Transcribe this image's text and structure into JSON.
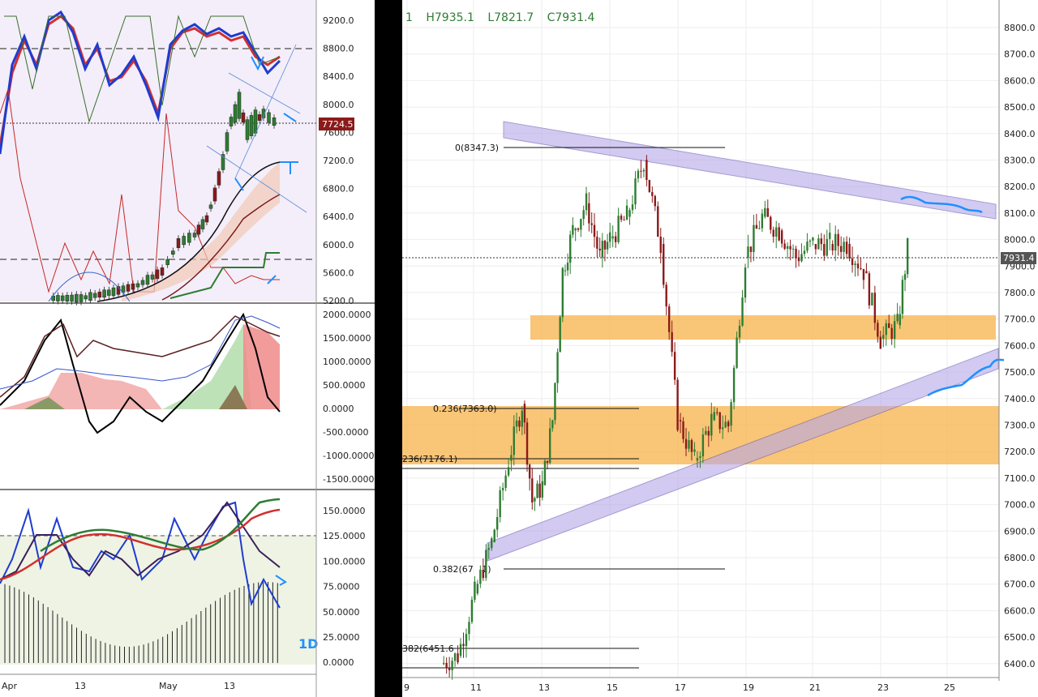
{
  "left": {
    "price_panel": {
      "axis_labels": [
        "9200.0",
        "8800.0",
        "8400.0",
        "8000.0",
        "7600.0",
        "7200.0",
        "6800.0",
        "6400.0",
        "6000.0",
        "5600.0",
        "5200.0"
      ],
      "last_price": "7724.5"
    },
    "macd_panel": {
      "axis_labels": [
        "2000.0000",
        "1500.0000",
        "1000.0000",
        "500.0000",
        "0.0000",
        "-500.0000",
        "-1000.0000",
        "-1500.0000"
      ]
    },
    "stoch_panel": {
      "axis_labels": [
        "150.0000",
        "125.0000",
        "100.0000",
        "75.0000",
        "50.0000",
        "25.0000",
        "0.0000"
      ],
      "timeframe": "1D"
    },
    "x_labels": [
      "Apr",
      "13",
      "May",
      "13"
    ]
  },
  "right": {
    "ohlc": {
      "prefix": "1",
      "high": "H7935.1",
      "low": "L7821.7",
      "close": "C7931.4"
    },
    "axis_labels": [
      "8800.0",
      "8700.0",
      "8600.0",
      "8500.0",
      "8400.0",
      "8300.0",
      "8200.0",
      "8100.0",
      "8000.0",
      "7900.0",
      "7800.0",
      "7700.0",
      "7600.0",
      "7500.0",
      "7400.0",
      "7300.0",
      "7200.0",
      "7100.0",
      "7000.0",
      "6900.0",
      "6800.0",
      "6700.0",
      "6600.0",
      "6500.0",
      "6400.0"
    ],
    "last_price": "7931.4",
    "fib_labels": [
      "0(8347.3)",
      "0.236(7363.0)",
      "236(7176.1)",
      "0.382(67  .1)",
      "382(6451.6"
    ],
    "x_labels": [
      "9",
      "11",
      "13",
      "15",
      "17",
      "19",
      "21",
      "23",
      "25"
    ]
  },
  "colors": {
    "bull": "#2e7d32",
    "bear": "#8b1a1a",
    "zone": "#f7b24a",
    "channel": "#9a8ad8",
    "annotation": "#1e90ff",
    "last_price_left": "#8b1a1a",
    "last_price_right": "#555555"
  },
  "chart_data": {
    "type": "candlestick",
    "title": "",
    "ylim": [
      6350,
      8850
    ],
    "close_series": [
      {
        "x": "10",
        "close": 6400
      },
      {
        "x": "10.5",
        "close": 6430
      },
      {
        "x": "11",
        "close": 6660
      },
      {
        "x": "11.5",
        "close": 6850
      },
      {
        "x": "12",
        "close": 7150
      },
      {
        "x": "12.4",
        "close": 7360
      },
      {
        "x": "12.7",
        "close": 7000
      },
      {
        "x": "13",
        "close": 7060
      },
      {
        "x": "13.3",
        "close": 7300
      },
      {
        "x": "13.6",
        "close": 7850
      },
      {
        "x": "13.9",
        "close": 8000
      },
      {
        "x": "14.3",
        "close": 8100
      },
      {
        "x": "14.7",
        "close": 7900
      },
      {
        "x": "15",
        "close": 7970
      },
      {
        "x": "15.5",
        "close": 8050
      },
      {
        "x": "16",
        "close": 8260
      },
      {
        "x": "16.5",
        "close": 7950
      },
      {
        "x": "17",
        "close": 7300
      },
      {
        "x": "17.5",
        "close": 7150
      },
      {
        "x": "18",
        "close": 7300
      },
      {
        "x": "18.5",
        "close": 7280
      },
      {
        "x": "19",
        "close": 7900
      },
      {
        "x": "19.5",
        "close": 8050
      },
      {
        "x": "20",
        "close": 8000
      },
      {
        "x": "20.5",
        "close": 7900
      },
      {
        "x": "21",
        "close": 7950
      },
      {
        "x": "21.5",
        "close": 7950
      },
      {
        "x": "22",
        "close": 7950
      },
      {
        "x": "22.5",
        "close": 7850
      },
      {
        "x": "23",
        "close": 7600
      },
      {
        "x": "23.5",
        "close": 7650
      },
      {
        "x": "23.8",
        "close": 7931.4
      }
    ]
  }
}
